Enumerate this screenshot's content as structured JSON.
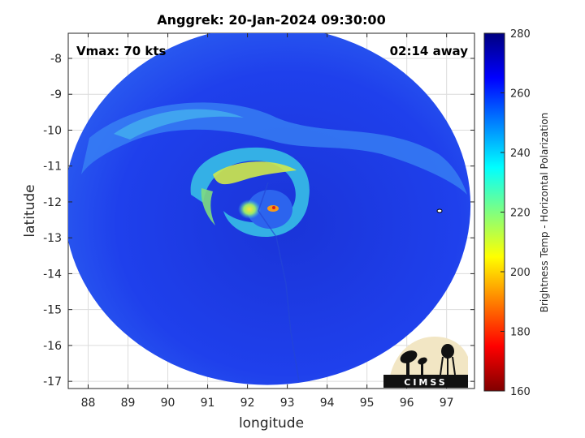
{
  "chart_data": {
    "type": "heatmap",
    "title": "Anggrek: 20-Jan-2024 09:30:00",
    "xlabel": "longitude",
    "ylabel": "latitude",
    "xlim": [
      87.5,
      97.7
    ],
    "ylim": [
      -17.2,
      -7.3
    ],
    "xticks": [
      88,
      89,
      90,
      91,
      92,
      93,
      94,
      95,
      96,
      97
    ],
    "yticks": [
      -8,
      -9,
      -10,
      -11,
      -12,
      -13,
      -14,
      -15,
      -16,
      -17
    ],
    "grid": true,
    "annotations": {
      "vmax": "Vmax: 70 kts",
      "time_offset": "02:14 away"
    },
    "storm_center": {
      "lon": 92.5,
      "lat": -12.1
    },
    "swath": {
      "center_lon": 92.5,
      "center_lat": -12.1,
      "radius_lon": 5.1,
      "radius_lat": 5.0
    },
    "colorbar": {
      "label": "Brightness Temp - Horizontal Polarization",
      "min": 160,
      "max": 280,
      "ticks": [
        280,
        260,
        240,
        220,
        200,
        180,
        160
      ]
    },
    "logo_text": "CIMSS"
  },
  "colors": {
    "ocean": "#1e3ae8",
    "deep": "#0f1fb8",
    "band": "#3e8cf3",
    "cyan": "#39d4e0",
    "yellow": "#f4ec2a",
    "orange": "#f49a1e"
  }
}
